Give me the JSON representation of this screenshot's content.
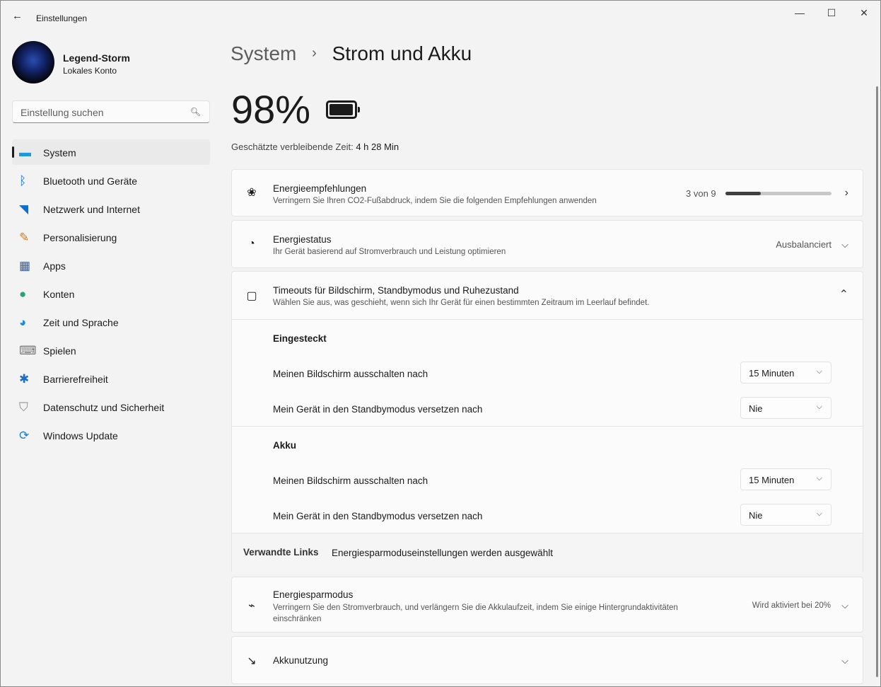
{
  "window": {
    "title": "Einstellungen",
    "minimize": "—",
    "maximize": "☐",
    "close": "✕",
    "back": "←"
  },
  "user": {
    "name": "Legend-Storm",
    "account_type": "Lokales Konto"
  },
  "search": {
    "placeholder": "Einstellung suchen",
    "icon": "search-icon"
  },
  "sidebar": {
    "items": [
      {
        "label": "System",
        "icon": "monitor-icon",
        "selected": true
      },
      {
        "label": "Bluetooth und Geräte",
        "icon": "bluetooth-icon"
      },
      {
        "label": "Netzwerk und Internet",
        "icon": "wifi-icon"
      },
      {
        "label": "Personalisierung",
        "icon": "brush-icon"
      },
      {
        "label": "Apps",
        "icon": "apps-icon"
      },
      {
        "label": "Konten",
        "icon": "person-icon"
      },
      {
        "label": "Zeit und Sprache",
        "icon": "globe-clock-icon"
      },
      {
        "label": "Spielen",
        "icon": "gamepad-icon"
      },
      {
        "label": "Barrierefreiheit",
        "icon": "accessibility-icon"
      },
      {
        "label": "Datenschutz und Sicherheit",
        "icon": "shield-icon"
      },
      {
        "label": "Windows Update",
        "icon": "update-icon"
      }
    ]
  },
  "breadcrumb": {
    "parent": "System",
    "sep": "›",
    "current": "Strom und Akku"
  },
  "battery": {
    "percent": "98%",
    "level": 98,
    "remaining_label": "Geschätzte verbleibende Zeit:",
    "remaining_value": "4 h 28 Min"
  },
  "cards": {
    "recommendations": {
      "title": "Energieempfehlungen",
      "subtitle": "Verringern Sie Ihren CO2-Fußabdruck, indem Sie die folgenden Empfehlungen anwenden",
      "progress_text": "3 von 9",
      "progress": 0.333
    },
    "power_mode": {
      "title": "Energiestatus",
      "subtitle": "Ihr Gerät basierend auf Stromverbrauch und Leistung optimieren",
      "value": "Ausbalanciert"
    },
    "timeouts": {
      "title": "Timeouts für Bildschirm, Standbymodus und Ruhezustand",
      "subtitle": "Wählen Sie aus, was geschieht, wenn sich Ihr Gerät für einen bestimmten Zeitraum im Leerlauf befindet.",
      "plugged": {
        "heading": "Eingesteckt",
        "screen_label": "Meinen Bildschirm ausschalten nach",
        "screen_value": "15 Minuten",
        "sleep_label": "Mein Gerät in den Standbymodus versetzen nach",
        "sleep_value": "Nie"
      },
      "battery": {
        "heading": "Akku",
        "screen_label": "Meinen Bildschirm ausschalten nach",
        "screen_value": "15 Minuten",
        "sleep_label": "Mein Gerät in den Standbymodus versetzen nach",
        "sleep_value": "Nie"
      },
      "related_label": "Verwandte Links",
      "related_link": "Energiesparmoduseinstellungen werden ausgewählt"
    },
    "saver": {
      "title": "Energiesparmodus",
      "subtitle": "Verringern Sie den Stromverbrauch, und verlängern Sie die Akkulaufzeit, indem Sie einige Hintergrundaktivitäten einschränken",
      "value": "Wird aktiviert bei 20%"
    },
    "usage": {
      "title": "Akkunutzung"
    }
  }
}
